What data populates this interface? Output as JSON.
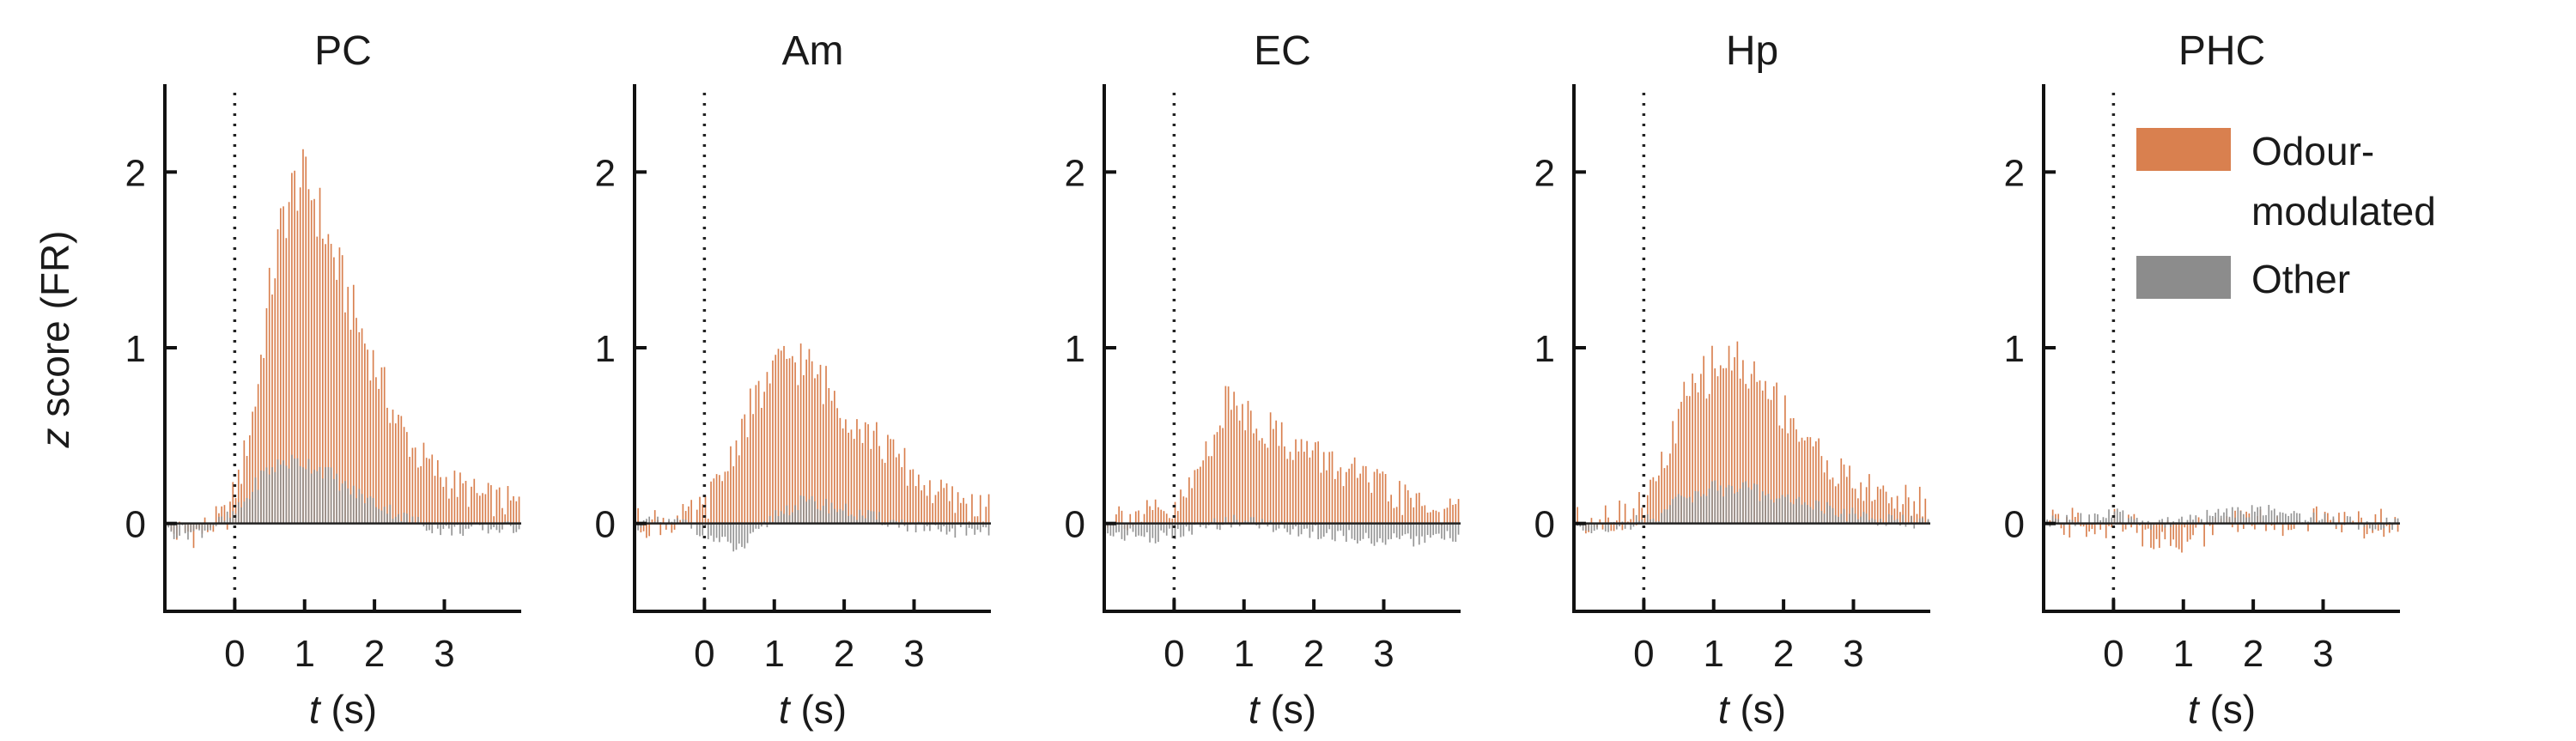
{
  "colors": {
    "odour": "#d9804f",
    "other": "#8c8c8c",
    "axis": "#111111"
  },
  "legend": {
    "odour_label_line1": "Odour-",
    "odour_label_line2": "modulated",
    "other_label": "Other",
    "position": "top-right of PHC panel"
  },
  "y_axis_label": {
    "italic": "z",
    "rest": " score (FR)"
  },
  "x_axis_label": {
    "italic": "t",
    "rest": " (s)"
  },
  "chart_data": [
    {
      "type": "bar",
      "title": "PC",
      "xlim": [
        -1,
        4.1
      ],
      "ylim": [
        -0.5,
        2.5
      ],
      "xticks": [
        "0",
        "1",
        "2",
        "3"
      ],
      "yticks": [
        "0",
        "1",
        "2"
      ],
      "series": [
        {
          "name": "Odour-modulated",
          "keypoints": [
            [
              -1,
              -0.05
            ],
            [
              -0.5,
              -0.05
            ],
            [
              -0.1,
              0.05
            ],
            [
              0.1,
              0.3
            ],
            [
              0.3,
              0.7
            ],
            [
              0.5,
              1.3
            ],
            [
              0.7,
              1.75
            ],
            [
              0.9,
              1.95
            ],
            [
              1.1,
              1.9
            ],
            [
              1.3,
              1.65
            ],
            [
              1.6,
              1.3
            ],
            [
              2.0,
              0.9
            ],
            [
              2.3,
              0.6
            ],
            [
              2.6,
              0.4
            ],
            [
              3.0,
              0.25
            ],
            [
              3.5,
              0.15
            ],
            [
              4.1,
              0.1
            ]
          ]
        },
        {
          "name": "Other",
          "keypoints": [
            [
              -1,
              -0.05
            ],
            [
              -0.5,
              -0.05
            ],
            [
              0,
              0.05
            ],
            [
              0.2,
              0.15
            ],
            [
              0.4,
              0.28
            ],
            [
              0.7,
              0.35
            ],
            [
              1.0,
              0.35
            ],
            [
              1.3,
              0.3
            ],
            [
              1.6,
              0.2
            ],
            [
              2.0,
              0.12
            ],
            [
              2.5,
              0.02
            ],
            [
              3.0,
              -0.04
            ],
            [
              4.1,
              -0.02
            ]
          ]
        }
      ]
    },
    {
      "type": "bar",
      "title": "Am",
      "xlim": [
        -1,
        4.1
      ],
      "ylim": [
        -0.5,
        2.5
      ],
      "xticks": [
        "0",
        "1",
        "2",
        "3"
      ],
      "yticks": [
        "0",
        "1",
        "2"
      ],
      "series": [
        {
          "name": "Odour-modulated",
          "keypoints": [
            [
              -1,
              0
            ],
            [
              -0.3,
              0.02
            ],
            [
              0,
              0.08
            ],
            [
              0.3,
              0.3
            ],
            [
              0.6,
              0.6
            ],
            [
              0.9,
              0.8
            ],
            [
              1.2,
              0.95
            ],
            [
              1.4,
              0.92
            ],
            [
              1.7,
              0.8
            ],
            [
              2.0,
              0.65
            ],
            [
              2.4,
              0.5
            ],
            [
              2.8,
              0.35
            ],
            [
              3.2,
              0.2
            ],
            [
              3.6,
              0.12
            ],
            [
              4.1,
              0.08
            ]
          ]
        },
        {
          "name": "Other",
          "keypoints": [
            [
              -1,
              0
            ],
            [
              -0.2,
              0.0
            ],
            [
              0.2,
              -0.1
            ],
            [
              0.5,
              -0.15
            ],
            [
              0.8,
              -0.05
            ],
            [
              1.0,
              0.05
            ],
            [
              1.4,
              0.12
            ],
            [
              1.8,
              0.1
            ],
            [
              2.2,
              0.05
            ],
            [
              2.8,
              0
            ],
            [
              3.3,
              -0.05
            ],
            [
              4.1,
              -0.03
            ]
          ]
        }
      ]
    },
    {
      "type": "bar",
      "title": "EC",
      "xlim": [
        -1,
        4.1
      ],
      "ylim": [
        -0.5,
        2.5
      ],
      "xticks": [
        "0",
        "1",
        "2",
        "3"
      ],
      "yticks": [
        "0",
        "1",
        "2"
      ],
      "series": [
        {
          "name": "Odour-modulated",
          "keypoints": [
            [
              -1,
              0.05
            ],
            [
              -0.3,
              0.05
            ],
            [
              0,
              0.05
            ],
            [
              0.3,
              0.25
            ],
            [
              0.6,
              0.55
            ],
            [
              0.8,
              0.7
            ],
            [
              1.0,
              0.65
            ],
            [
              1.3,
              0.55
            ],
            [
              1.7,
              0.45
            ],
            [
              2.2,
              0.35
            ],
            [
              2.7,
              0.25
            ],
            [
              3.2,
              0.15
            ],
            [
              3.7,
              0.08
            ],
            [
              4.1,
              0.05
            ]
          ]
        },
        {
          "name": "Other",
          "keypoints": [
            [
              -1,
              -0.05
            ],
            [
              -0.2,
              -0.08
            ],
            [
              0.2,
              -0.05
            ],
            [
              0.6,
              0.0
            ],
            [
              1.0,
              0.02
            ],
            [
              1.5,
              -0.02
            ],
            [
              2.0,
              -0.05
            ],
            [
              2.6,
              -0.08
            ],
            [
              3.2,
              -0.1
            ],
            [
              4.1,
              -0.08
            ]
          ]
        }
      ]
    },
    {
      "type": "bar",
      "title": "Hp",
      "xlim": [
        -1,
        4.1
      ],
      "ylim": [
        -0.5,
        2.5
      ],
      "xticks": [
        "0",
        "1",
        "2",
        "3"
      ],
      "yticks": [
        "0",
        "1",
        "2"
      ],
      "series": [
        {
          "name": "Odour-modulated",
          "keypoints": [
            [
              -1,
              0.02
            ],
            [
              -0.3,
              0.05
            ],
            [
              0,
              0.1
            ],
            [
              0.3,
              0.35
            ],
            [
              0.6,
              0.7
            ],
            [
              0.9,
              0.85
            ],
            [
              1.2,
              0.95
            ],
            [
              1.4,
              0.9
            ],
            [
              1.8,
              0.75
            ],
            [
              2.2,
              0.55
            ],
            [
              2.6,
              0.35
            ],
            [
              3.0,
              0.22
            ],
            [
              3.5,
              0.15
            ],
            [
              4.1,
              0.1
            ]
          ]
        },
        {
          "name": "Other",
          "keypoints": [
            [
              -1,
              -0.02
            ],
            [
              -0.3,
              -0.02
            ],
            [
              0.2,
              0.05
            ],
            [
              0.6,
              0.15
            ],
            [
              1.0,
              0.2
            ],
            [
              1.4,
              0.2
            ],
            [
              1.8,
              0.16
            ],
            [
              2.3,
              0.12
            ],
            [
              2.8,
              0.06
            ],
            [
              3.4,
              0.02
            ],
            [
              4.1,
              0.0
            ]
          ]
        }
      ]
    },
    {
      "type": "bar",
      "title": "PHC",
      "xlim": [
        -1,
        4.1
      ],
      "ylim": [
        -0.5,
        2.5
      ],
      "xticks": [
        "0",
        "1",
        "2",
        "3"
      ],
      "yticks": [
        "0",
        "1",
        "2"
      ],
      "series": [
        {
          "name": "Odour-modulated",
          "keypoints": [
            [
              -1,
              0
            ],
            [
              0,
              0
            ],
            [
              0.5,
              -0.05
            ],
            [
              1.0,
              -0.08
            ],
            [
              1.5,
              -0.02
            ],
            [
              2.0,
              0.02
            ],
            [
              2.5,
              0
            ],
            [
              3.0,
              0.02
            ],
            [
              3.5,
              0
            ],
            [
              4.1,
              0
            ]
          ]
        },
        {
          "name": "Other",
          "keypoints": [
            [
              -1,
              0
            ],
            [
              0,
              0.05
            ],
            [
              0.5,
              0.0
            ],
            [
              1.0,
              0.02
            ],
            [
              1.5,
              0.05
            ],
            [
              2.0,
              0.08
            ],
            [
              2.5,
              0.05
            ],
            [
              3.0,
              0.03
            ],
            [
              3.5,
              0.0
            ],
            [
              4.1,
              0
            ]
          ]
        }
      ]
    }
  ]
}
